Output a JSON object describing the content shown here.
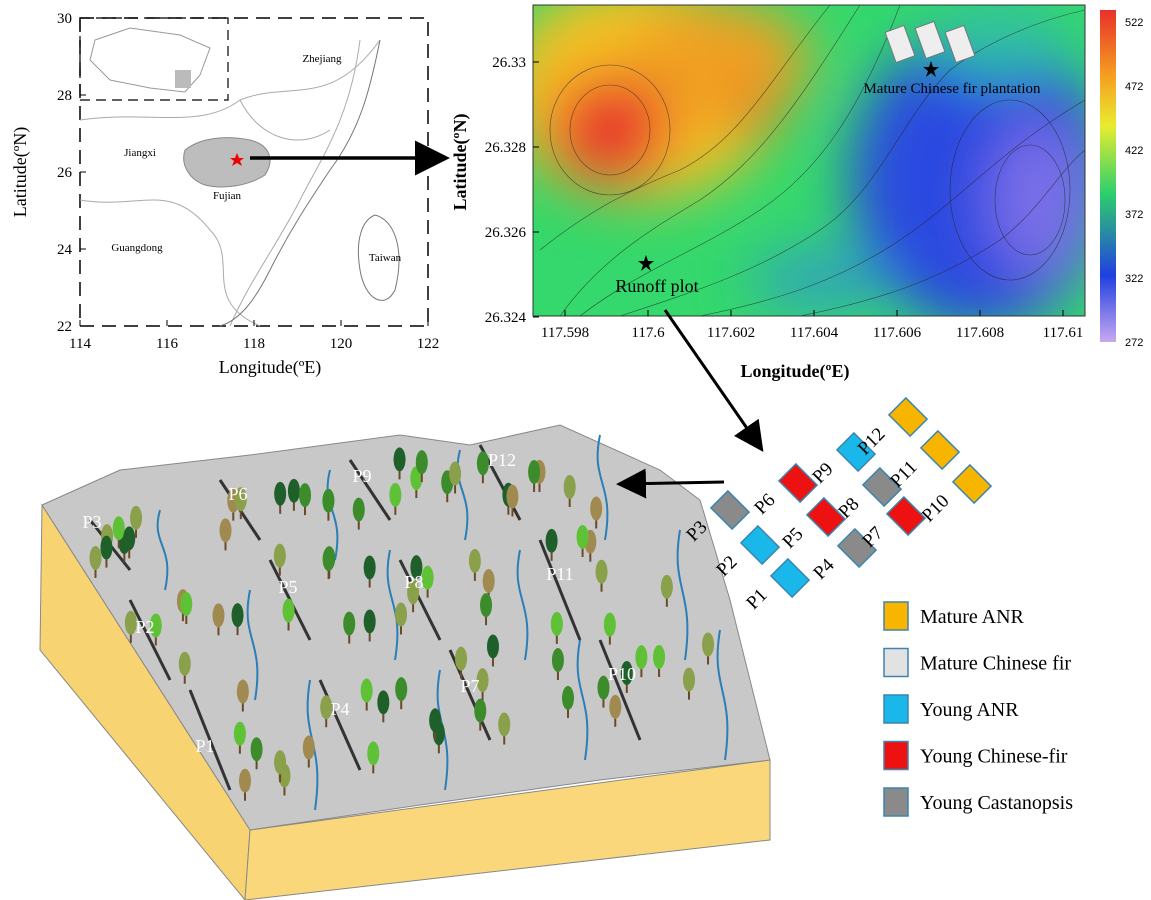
{
  "map": {
    "y_axis_label": "Latitude(ºN)",
    "x_axis_label": "Longitude(ºE)",
    "yticks": [
      "30",
      "28",
      "26",
      "24",
      "22"
    ],
    "xticks": [
      "114",
      "116",
      "118",
      "120",
      "122"
    ],
    "places": [
      "Zhejiang",
      "Jiangxi",
      "Fujian",
      "Guangdong",
      "Taiwan"
    ]
  },
  "elevation_map": {
    "y_axis_label": "Latitude(ºN)",
    "x_axis_label": "Longitude(ºE)",
    "yticks": [
      "26.33",
      "26.328",
      "26.326",
      "26.324"
    ],
    "xticks": [
      "117.598",
      "117.6",
      "117.602",
      "117.604",
      "117.606",
      "117.608",
      "117.61"
    ],
    "colorbar_ticks": [
      "522",
      "472",
      "422",
      "372",
      "322",
      "272"
    ],
    "annotations": [
      "Mature Chinese fir plantation",
      "Runoff plot"
    ]
  },
  "plot_layout": {
    "plots": [
      {
        "label": "P1",
        "color": "#1ab8ea"
      },
      {
        "label": "P2",
        "color": "#1ab8ea"
      },
      {
        "label": "P3",
        "color": "#8a8a8a"
      },
      {
        "label": "P4",
        "color": "#8a8a8a"
      },
      {
        "label": "P5",
        "color": "#ee1111"
      },
      {
        "label": "P6",
        "color": "#ee1111"
      },
      {
        "label": "P7",
        "color": "#ee1111"
      },
      {
        "label": "P8",
        "color": "#8a8a8a"
      },
      {
        "label": "P9",
        "color": "#1ab8ea"
      },
      {
        "label": "P10",
        "color": "#f7b500"
      },
      {
        "label": "P11",
        "color": "#f7b500"
      },
      {
        "label": "P12",
        "color": "#f7b500"
      }
    ]
  },
  "legend": [
    {
      "label": "Mature ANR",
      "color": "#f7b500"
    },
    {
      "label": "Mature Chinese fir",
      "color": "#e2e2e2"
    },
    {
      "label": "Young ANR",
      "color": "#1ab8ea"
    },
    {
      "label": "Young Chinese-fir",
      "color": "#ee1111"
    },
    {
      "label": "Young Castanopsis",
      "color": "#8a8a8a"
    }
  ],
  "block_diagram": {
    "plot_labels": [
      "P1",
      "P2",
      "P3",
      "P4",
      "P5",
      "P6",
      "P7",
      "P8",
      "P9",
      "P10",
      "P11",
      "P12"
    ]
  }
}
